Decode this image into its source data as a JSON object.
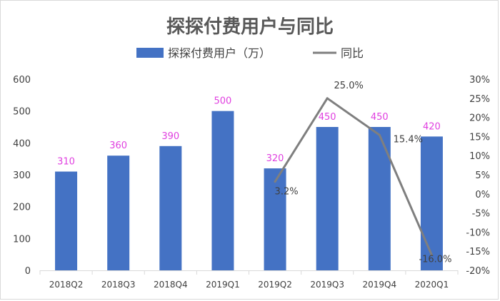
{
  "chart_data": {
    "type": "bar",
    "title": "探探付费用户与同比",
    "categories": [
      "2018Q2",
      "2018Q3",
      "2018Q4",
      "2019Q1",
      "2019Q2",
      "2019Q3",
      "2019Q4",
      "2020Q1"
    ],
    "series": [
      {
        "name": "探探付费用户（万）",
        "type": "bar",
        "axis": "left",
        "values": [
          310,
          360,
          390,
          500,
          320,
          450,
          450,
          420
        ],
        "labels": [
          "310",
          "360",
          "390",
          "500",
          "320",
          "450",
          "450",
          "420"
        ]
      },
      {
        "name": "同比",
        "type": "line",
        "axis": "right",
        "values": [
          null,
          null,
          null,
          null,
          3.2,
          25.0,
          15.4,
          -16.0
        ],
        "labels": [
          "",
          "",
          "",
          "",
          "3.2%",
          "25.0%",
          "15.4%",
          "-16.0%"
        ]
      }
    ],
    "y_left": {
      "range": [
        0,
        600
      ],
      "ticks": [
        0,
        100,
        200,
        300,
        400,
        500,
        600
      ],
      "tick_labels": [
        "0",
        "100",
        "200",
        "300",
        "400",
        "500",
        "600"
      ]
    },
    "y_right": {
      "range": [
        -20,
        30
      ],
      "ticks": [
        -20,
        -15,
        -10,
        -5,
        0,
        5,
        10,
        15,
        20,
        25,
        30
      ],
      "tick_labels": [
        "-20%",
        "-15%",
        "-10%",
        "-5%",
        "0%",
        "5%",
        "10%",
        "15%",
        "20%",
        "25%",
        "30%"
      ]
    },
    "legend": "top-center",
    "grid": false,
    "colors": {
      "bar": "#4472c4",
      "line": "#7f7f7f",
      "bar_label": "#e040e0",
      "line_label": "#404040",
      "axis": "#d9d9d9"
    }
  }
}
